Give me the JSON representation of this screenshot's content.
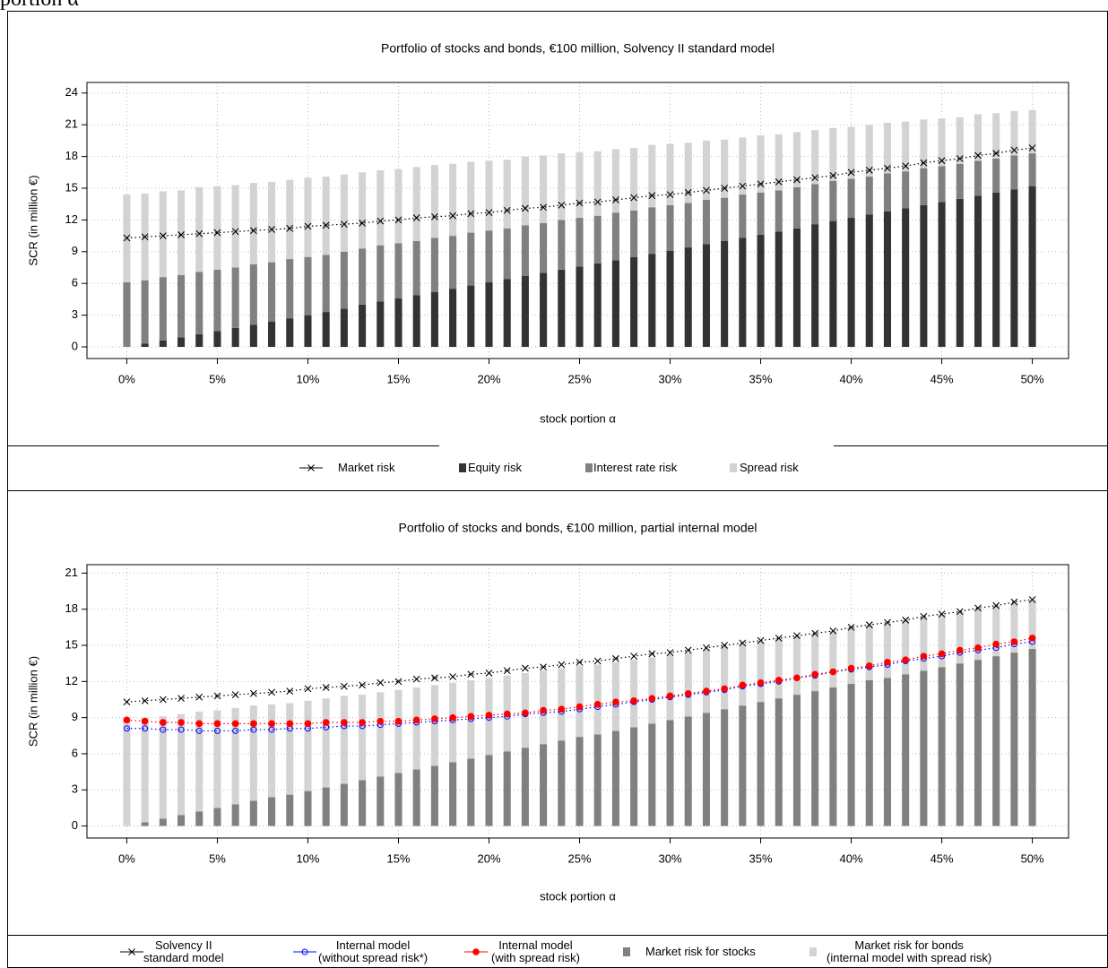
{
  "caption_fragment": "portion α",
  "chart_data": [
    {
      "type": "bar",
      "title": "Portfolio of stocks and bonds, €100 million, Solvency II standard model",
      "xlabel": "stock portion α",
      "ylabel": "SCR (in million €)",
      "x": [
        0,
        1,
        2,
        3,
        4,
        5,
        6,
        7,
        8,
        9,
        10,
        11,
        12,
        13,
        14,
        15,
        16,
        17,
        18,
        19,
        20,
        21,
        22,
        23,
        24,
        25,
        26,
        27,
        28,
        29,
        30,
        31,
        32,
        33,
        34,
        35,
        36,
        37,
        38,
        39,
        40,
        41,
        42,
        43,
        44,
        45,
        46,
        47,
        48,
        49,
        50
      ],
      "xlim": [
        -2.2,
        52
      ],
      "xticks": [
        {
          "value": 0,
          "label": "0%"
        },
        {
          "value": 5,
          "label": "5%"
        },
        {
          "value": 10,
          "label": "10%"
        },
        {
          "value": 15,
          "label": "15%"
        },
        {
          "value": 20,
          "label": "20%"
        },
        {
          "value": 25,
          "label": "25%"
        },
        {
          "value": 30,
          "label": "30%"
        },
        {
          "value": 35,
          "label": "35%"
        },
        {
          "value": 40,
          "label": "40%"
        },
        {
          "value": 45,
          "label": "45%"
        },
        {
          "value": 50,
          "label": "50%"
        }
      ],
      "ylim": [
        -1.1,
        25
      ],
      "yticks": [
        0,
        3,
        6,
        9,
        12,
        15,
        18,
        21,
        24
      ],
      "grid": true,
      "series": [
        {
          "name": "Market risk",
          "kind": "line",
          "marker": "x",
          "color": "#000000",
          "values": [
            10.3,
            10.4,
            10.5,
            10.6,
            10.7,
            10.8,
            10.9,
            11.0,
            11.1,
            11.2,
            11.4,
            11.5,
            11.6,
            11.7,
            11.9,
            12.0,
            12.2,
            12.3,
            12.4,
            12.6,
            12.7,
            12.9,
            13.1,
            13.2,
            13.4,
            13.6,
            13.7,
            13.9,
            14.1,
            14.3,
            14.4,
            14.6,
            14.8,
            15.0,
            15.2,
            15.4,
            15.6,
            15.8,
            16.0,
            16.2,
            16.5,
            16.7,
            16.9,
            17.1,
            17.4,
            17.6,
            17.8,
            18.1,
            18.3,
            18.6,
            18.8
          ]
        },
        {
          "name": "Equity risk",
          "kind": "bar",
          "color": "#333333",
          "values": [
            0,
            0.3,
            0.6,
            0.9,
            1.2,
            1.5,
            1.8,
            2.1,
            2.4,
            2.7,
            3.0,
            3.3,
            3.6,
            4.0,
            4.3,
            4.6,
            4.9,
            5.2,
            5.5,
            5.8,
            6.1,
            6.4,
            6.7,
            7.0,
            7.3,
            7.6,
            7.9,
            8.2,
            8.5,
            8.8,
            9.1,
            9.4,
            9.7,
            10.0,
            10.3,
            10.6,
            10.9,
            11.2,
            11.6,
            11.9,
            12.2,
            12.5,
            12.8,
            13.1,
            13.4,
            13.7,
            14.0,
            14.3,
            14.6,
            14.9,
            15.2
          ]
        },
        {
          "name": "Interest rate risk",
          "kind": "bar",
          "color": "#808080",
          "values": [
            6.1,
            6.0,
            6.0,
            5.9,
            5.9,
            5.8,
            5.7,
            5.7,
            5.6,
            5.6,
            5.5,
            5.4,
            5.4,
            5.3,
            5.3,
            5.2,
            5.1,
            5.1,
            5.0,
            5.0,
            4.9,
            4.8,
            4.8,
            4.7,
            4.7,
            4.6,
            4.5,
            4.5,
            4.4,
            4.4,
            4.3,
            4.2,
            4.2,
            4.1,
            4.1,
            4.0,
            3.9,
            3.9,
            3.8,
            3.8,
            3.7,
            3.6,
            3.6,
            3.5,
            3.5,
            3.4,
            3.3,
            3.3,
            3.2,
            3.2,
            3.1
          ]
        },
        {
          "name": "Spread risk",
          "kind": "bar",
          "color": "#d3d3d3",
          "values": [
            8.3,
            8.2,
            8.1,
            8.0,
            8.0,
            7.9,
            7.8,
            7.7,
            7.6,
            7.5,
            7.5,
            7.4,
            7.3,
            7.2,
            7.1,
            7.0,
            7.0,
            6.9,
            6.8,
            6.7,
            6.6,
            6.5,
            6.5,
            6.4,
            6.3,
            6.2,
            6.1,
            6.0,
            5.9,
            5.9,
            5.8,
            5.7,
            5.6,
            5.5,
            5.4,
            5.4,
            5.3,
            5.2,
            5.1,
            5.0,
            4.9,
            4.9,
            4.8,
            4.7,
            4.6,
            4.5,
            4.4,
            4.4,
            4.3,
            4.2,
            4.1
          ]
        }
      ]
    },
    {
      "type": "bar",
      "title": "Portfolio of stocks and bonds, €100 million, partial internal model",
      "xlabel": "stock portion α",
      "ylabel": "SCR (in million €)",
      "x": [
        0,
        1,
        2,
        3,
        4,
        5,
        6,
        7,
        8,
        9,
        10,
        11,
        12,
        13,
        14,
        15,
        16,
        17,
        18,
        19,
        20,
        21,
        22,
        23,
        24,
        25,
        26,
        27,
        28,
        29,
        30,
        31,
        32,
        33,
        34,
        35,
        36,
        37,
        38,
        39,
        40,
        41,
        42,
        43,
        44,
        45,
        46,
        47,
        48,
        49,
        50
      ],
      "xlim": [
        -2.2,
        52
      ],
      "xticks": [
        {
          "value": 0,
          "label": "0%"
        },
        {
          "value": 5,
          "label": "5%"
        },
        {
          "value": 10,
          "label": "10%"
        },
        {
          "value": 15,
          "label": "15%"
        },
        {
          "value": 20,
          "label": "20%"
        },
        {
          "value": 25,
          "label": "25%"
        },
        {
          "value": 30,
          "label": "30%"
        },
        {
          "value": 35,
          "label": "35%"
        },
        {
          "value": 40,
          "label": "40%"
        },
        {
          "value": 45,
          "label": "45%"
        },
        {
          "value": 50,
          "label": "50%"
        }
      ],
      "ylim": [
        -1.0,
        21.7
      ],
      "yticks": [
        0,
        3,
        6,
        9,
        12,
        15,
        18,
        21
      ],
      "grid": true,
      "series": [
        {
          "name": "Solvency II\nstandard model",
          "kind": "line",
          "marker": "x",
          "color": "#000000",
          "values": [
            10.3,
            10.4,
            10.5,
            10.6,
            10.7,
            10.8,
            10.9,
            11.0,
            11.1,
            11.2,
            11.4,
            11.5,
            11.6,
            11.7,
            11.9,
            12.0,
            12.2,
            12.3,
            12.4,
            12.6,
            12.7,
            12.9,
            13.1,
            13.2,
            13.4,
            13.6,
            13.7,
            13.9,
            14.1,
            14.3,
            14.4,
            14.6,
            14.8,
            15.0,
            15.2,
            15.4,
            15.6,
            15.8,
            16.0,
            16.2,
            16.5,
            16.7,
            16.9,
            17.1,
            17.4,
            17.6,
            17.8,
            18.1,
            18.3,
            18.6,
            18.8
          ]
        },
        {
          "name": "Internal model\n(without spread risk*)",
          "kind": "line",
          "marker": "circle",
          "color": "#0000ff",
          "values": [
            8.1,
            8.1,
            8.0,
            8.0,
            7.9,
            7.9,
            7.9,
            8.0,
            8.0,
            8.1,
            8.1,
            8.2,
            8.3,
            8.3,
            8.4,
            8.5,
            8.6,
            8.7,
            8.8,
            8.9,
            9.0,
            9.1,
            9.3,
            9.4,
            9.5,
            9.7,
            9.9,
            10.1,
            10.3,
            10.5,
            10.7,
            10.9,
            11.1,
            11.3,
            11.6,
            11.8,
            12.0,
            12.3,
            12.5,
            12.8,
            13.0,
            13.2,
            13.4,
            13.7,
            13.9,
            14.1,
            14.4,
            14.6,
            14.8,
            15.1,
            15.3
          ]
        },
        {
          "name": "Internal model\n(with spread risk)",
          "kind": "line",
          "marker": "dot",
          "color": "#ff0000",
          "values": [
            8.8,
            8.7,
            8.6,
            8.6,
            8.5,
            8.5,
            8.5,
            8.5,
            8.5,
            8.5,
            8.5,
            8.6,
            8.6,
            8.6,
            8.7,
            8.7,
            8.8,
            8.9,
            9.0,
            9.1,
            9.2,
            9.3,
            9.4,
            9.6,
            9.7,
            9.9,
            10.1,
            10.3,
            10.4,
            10.6,
            10.8,
            11.0,
            11.2,
            11.4,
            11.7,
            11.9,
            12.1,
            12.3,
            12.6,
            12.8,
            13.1,
            13.3,
            13.6,
            13.8,
            14.1,
            14.3,
            14.6,
            14.8,
            15.1,
            15.3,
            15.6
          ]
        },
        {
          "name": "Market risk for stocks",
          "kind": "bar",
          "color": "#808080",
          "values": [
            0,
            0.3,
            0.6,
            0.9,
            1.2,
            1.5,
            1.8,
            2.1,
            2.4,
            2.6,
            2.9,
            3.2,
            3.5,
            3.8,
            4.1,
            4.4,
            4.7,
            5.0,
            5.3,
            5.6,
            5.9,
            6.2,
            6.5,
            6.8,
            7.1,
            7.4,
            7.6,
            7.9,
            8.2,
            8.5,
            8.8,
            9.1,
            9.4,
            9.7,
            10.0,
            10.3,
            10.6,
            10.9,
            11.2,
            11.5,
            11.8,
            12.1,
            12.3,
            12.6,
            12.9,
            13.2,
            13.5,
            13.8,
            14.1,
            14.4,
            14.7
          ]
        },
        {
          "name": "Market risk for bonds\n(internal model with spread risk)",
          "kind": "bar",
          "color": "#d3d3d3",
          "values": [
            8.8,
            8.7,
            8.5,
            8.4,
            8.3,
            8.1,
            8.0,
            7.9,
            7.7,
            7.6,
            7.5,
            7.4,
            7.3,
            7.1,
            7.0,
            6.9,
            6.8,
            6.7,
            6.6,
            6.5,
            6.4,
            6.3,
            6.2,
            6.1,
            6.0,
            5.9,
            5.8,
            5.7,
            5.6,
            5.5,
            5.4,
            5.3,
            5.3,
            5.2,
            5.1,
            5.0,
            5.0,
            4.9,
            4.8,
            4.7,
            4.7,
            4.6,
            4.5,
            4.5,
            4.4,
            4.4,
            4.3,
            4.3,
            4.2,
            4.1,
            4.1
          ]
        }
      ]
    }
  ]
}
